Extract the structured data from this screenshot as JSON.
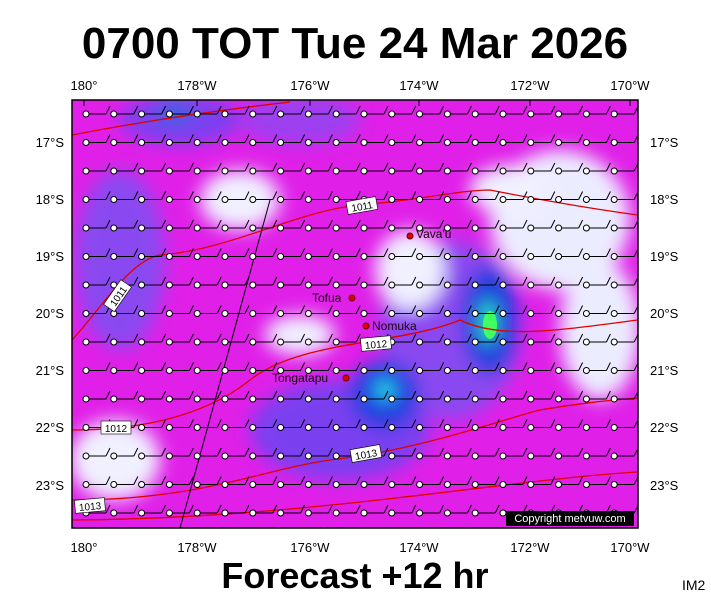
{
  "title": "0700 TOT Tue 24 Mar 2026",
  "footer": "Forecast +12 hr",
  "corner": "IM2",
  "copyright": "Copyright metvuw.com",
  "longitudes": [
    "180°",
    "178°W",
    "176°W",
    "174°W",
    "172°W",
    "170°W"
  ],
  "latitudes": [
    "17°S",
    "18°S",
    "19°S",
    "20°S",
    "21°S",
    "22°S",
    "23°S"
  ],
  "places": [
    "Vava'u",
    "Tofua",
    "Nomuka",
    "Tongatapu"
  ],
  "isobars": [
    "1011",
    "1011",
    "1012",
    "1012",
    "1013",
    "1013"
  ]
}
